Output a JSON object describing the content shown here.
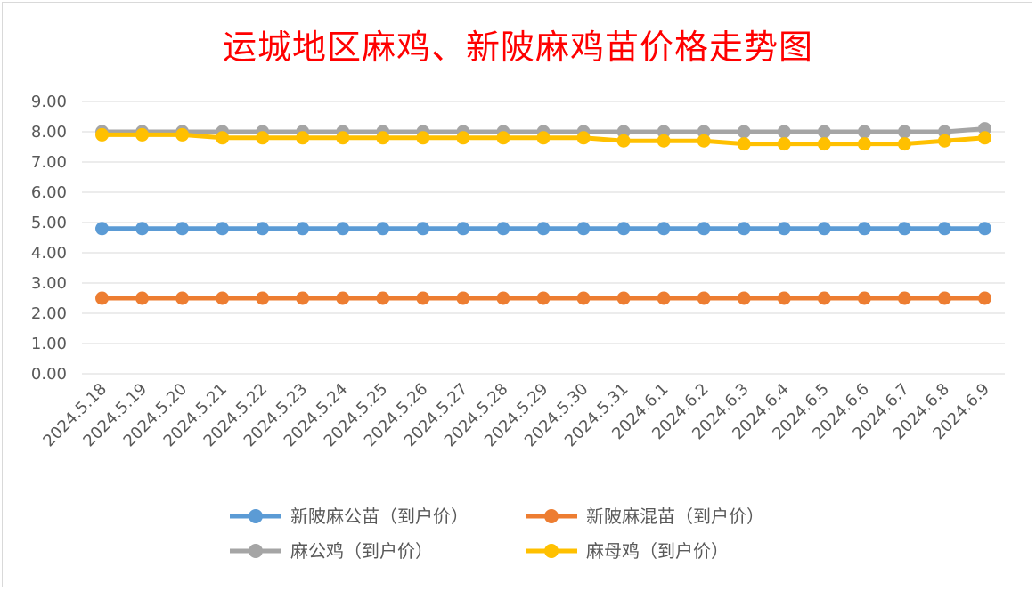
{
  "chart_data": {
    "type": "line",
    "title": "运城地区麻鸡、新陂麻鸡苗价格走势图",
    "xlabel": "",
    "ylabel": "",
    "ylim": [
      0,
      9
    ],
    "yticks": [
      "0.00",
      "1.00",
      "2.00",
      "3.00",
      "4.00",
      "5.00",
      "6.00",
      "7.00",
      "8.00",
      "9.00"
    ],
    "grid": true,
    "legend_position": "bottom",
    "categories": [
      "2024.5.18",
      "2024.5.19",
      "2024.5.20",
      "2024.5.21",
      "2024.5.22",
      "2024.5.23",
      "2024.5.24",
      "2024.5.25",
      "2024.5.26",
      "2024.5.27",
      "2024.5.28",
      "2024.5.29",
      "2024.5.30",
      "2024.5.31",
      "2024.6.1",
      "2024.6.2",
      "2024.6.3",
      "2024.6.4",
      "2024.6.5",
      "2024.6.6",
      "2024.6.7",
      "2024.6.8",
      "2024.6.9"
    ],
    "series": [
      {
        "name": "新陂麻公苗（到户价）",
        "color": "#5b9bd5",
        "values": [
          4.8,
          4.8,
          4.8,
          4.8,
          4.8,
          4.8,
          4.8,
          4.8,
          4.8,
          4.8,
          4.8,
          4.8,
          4.8,
          4.8,
          4.8,
          4.8,
          4.8,
          4.8,
          4.8,
          4.8,
          4.8,
          4.8,
          4.8
        ]
      },
      {
        "name": "新陂麻混苗（到户价）",
        "color": "#ed7d31",
        "values": [
          2.5,
          2.5,
          2.5,
          2.5,
          2.5,
          2.5,
          2.5,
          2.5,
          2.5,
          2.5,
          2.5,
          2.5,
          2.5,
          2.5,
          2.5,
          2.5,
          2.5,
          2.5,
          2.5,
          2.5,
          2.5,
          2.5,
          2.5
        ]
      },
      {
        "name": "麻公鸡（到户价）",
        "color": "#a5a5a5",
        "values": [
          8.0,
          8.0,
          8.0,
          8.0,
          8.0,
          8.0,
          8.0,
          8.0,
          8.0,
          8.0,
          8.0,
          8.0,
          8.0,
          8.0,
          8.0,
          8.0,
          8.0,
          8.0,
          8.0,
          8.0,
          8.0,
          8.0,
          8.1
        ]
      },
      {
        "name": "麻母鸡（到户价）",
        "color": "#ffc000",
        "values": [
          7.9,
          7.9,
          7.9,
          7.8,
          7.8,
          7.8,
          7.8,
          7.8,
          7.8,
          7.8,
          7.8,
          7.8,
          7.8,
          7.7,
          7.7,
          7.7,
          7.6,
          7.6,
          7.6,
          7.6,
          7.6,
          7.7,
          7.8
        ]
      }
    ]
  }
}
